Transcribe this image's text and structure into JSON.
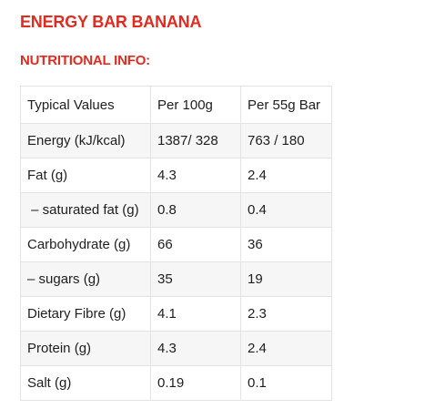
{
  "product": {
    "title": "ENERGY BAR BANANA"
  },
  "section": {
    "title": "NUTRITIONAL INFO:"
  },
  "table": {
    "headers": [
      "Typical Values",
      "Per 100g",
      "Per 55g Bar"
    ],
    "rows": [
      [
        "Energy (kJ/kcal)",
        "1387/ 328",
        "763 / 180"
      ],
      [
        "Fat (g)",
        "4.3",
        "2.4"
      ],
      [
        " – saturated fat (g)",
        "0.8",
        "0.4"
      ],
      [
        "Carbohydrate (g)",
        "66",
        "36"
      ],
      [
        "– sugars (g)",
        "35",
        "19"
      ],
      [
        "Dietary Fibre (g)",
        "4.1",
        "2.3"
      ],
      [
        "Protein (g)",
        "4.3",
        "2.4"
      ],
      [
        "Salt (g)",
        "0.19",
        "0.1"
      ]
    ]
  },
  "colors": {
    "heading_red": "#e02b20",
    "text": "#1e1e1e",
    "border": "#e3e3e3",
    "stripe": "#f6f6f6"
  }
}
